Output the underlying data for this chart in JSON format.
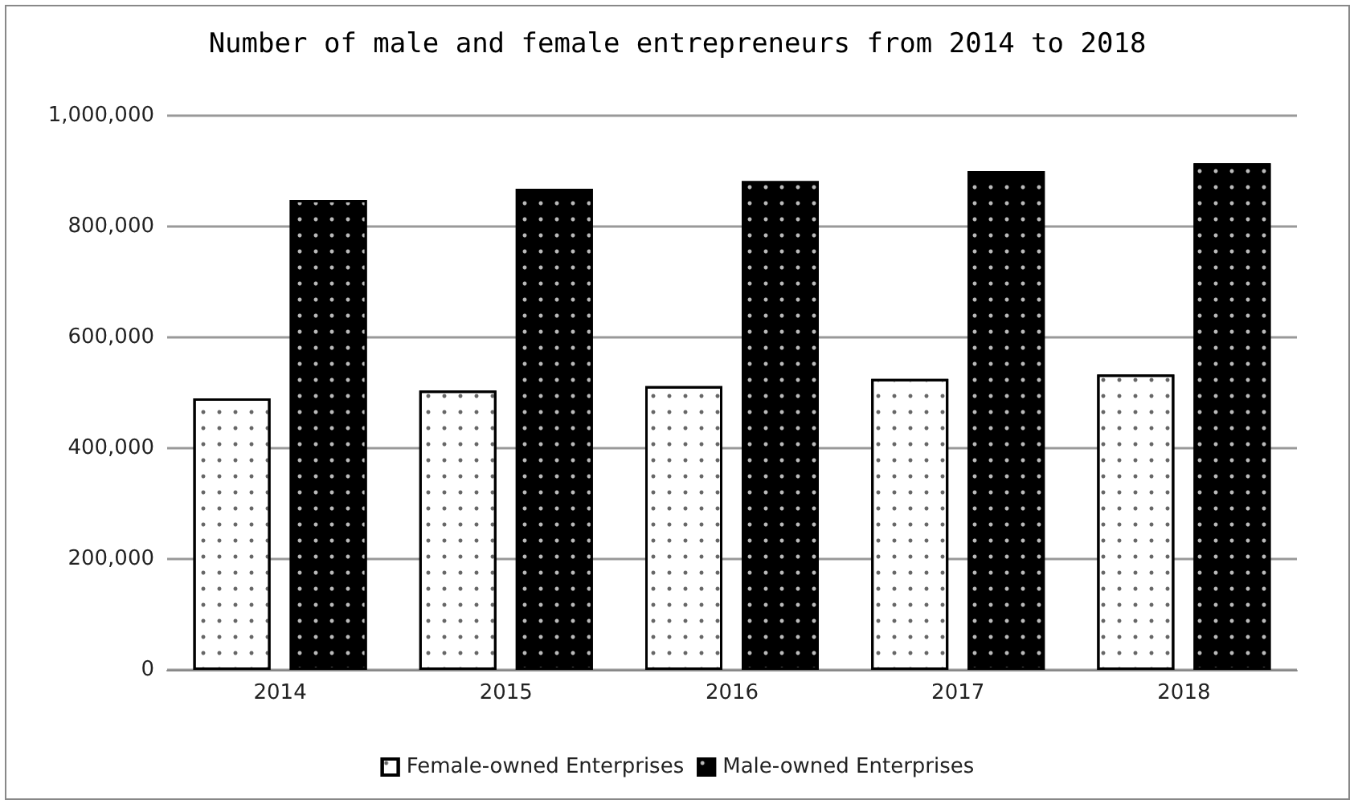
{
  "chart_data": {
    "type": "bar",
    "title": "Number of male and female entrepreneurs from 2014 to 2018",
    "categories": [
      "2014",
      "2015",
      "2016",
      "2017",
      "2018"
    ],
    "series": [
      {
        "name": "Female-owned Enterprises",
        "color": "#ffffff",
        "values": [
          490000,
          504000,
          512000,
          525000,
          533000
        ]
      },
      {
        "name": "Male-owned Enterprises",
        "color": "#000000",
        "values": [
          848000,
          868000,
          882000,
          900000,
          914000
        ]
      }
    ],
    "ylim": [
      0,
      1000000
    ],
    "yticks": [
      0,
      {
        "value": 200000,
        "label": "200,000"
      },
      {
        "value": 400000,
        "label": "400,000"
      },
      {
        "value": 600000,
        "label": "600,000"
      },
      {
        "value": 800000,
        "label": "800,000"
      },
      {
        "value": 1000000,
        "label": "1,000,000"
      }
    ],
    "grid": "y",
    "legend": "bottom"
  }
}
